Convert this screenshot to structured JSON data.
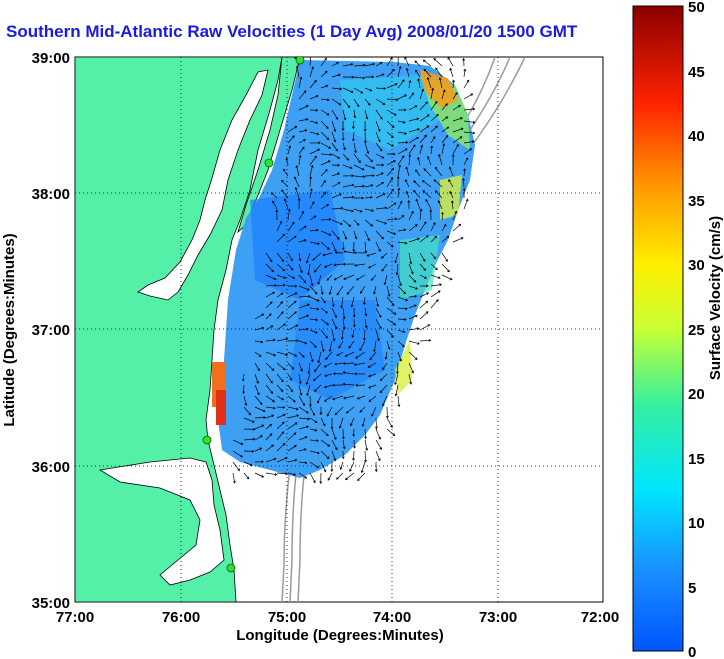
{
  "title": "Southern Mid-Atlantic Raw Velocities (1 Day Avg) 2008/01/20 1500 GMT",
  "map": {
    "xlabel": "Longitude (Degrees:Minutes)",
    "ylabel": "Latitude (Degrees:Minutes)",
    "x_ticks": [
      "77:00",
      "76:00",
      "75:00",
      "74:00",
      "73:00",
      "72:00"
    ],
    "y_ticks": [
      "39:00",
      "38:00",
      "37:00",
      "36:00",
      "35:00"
    ],
    "xlim": [
      -77,
      -72
    ],
    "ylim": [
      35,
      39
    ],
    "grid": "dotted",
    "land_color": "#55f0a8",
    "water_color": "#ffffff",
    "station_color": "#33dd33"
  },
  "colorbar": {
    "label": "Surface Velocity (cm/s)",
    "range": [
      0,
      50
    ],
    "ticks": [
      "0",
      "5",
      "10",
      "15",
      "20",
      "25",
      "30",
      "35",
      "40",
      "45",
      "50"
    ],
    "colormap": "jet"
  }
}
